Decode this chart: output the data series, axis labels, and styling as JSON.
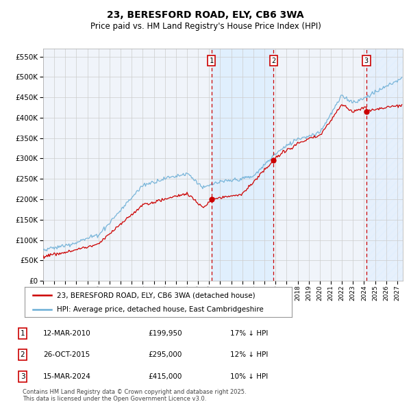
{
  "title": "23, BERESFORD ROAD, ELY, CB6 3WA",
  "subtitle": "Price paid vs. HM Land Registry's House Price Index (HPI)",
  "ylim": [
    0,
    570000
  ],
  "yticks": [
    0,
    50000,
    100000,
    150000,
    200000,
    250000,
    300000,
    350000,
    400000,
    450000,
    500000,
    550000
  ],
  "xlim_start": 1995.0,
  "xlim_end": 2027.5,
  "sale_dates": [
    2010.2,
    2015.82,
    2024.21
  ],
  "sale_prices": [
    199950,
    295000,
    415000
  ],
  "sale_labels": [
    "1",
    "2",
    "3"
  ],
  "legend_entries": [
    "23, BERESFORD ROAD, ELY, CB6 3WA (detached house)",
    "HPI: Average price, detached house, East Cambridgeshire"
  ],
  "table_rows": [
    [
      "1",
      "12-MAR-2010",
      "£199,950",
      "17% ↓ HPI"
    ],
    [
      "2",
      "26-OCT-2015",
      "£295,000",
      "12% ↓ HPI"
    ],
    [
      "3",
      "15-MAR-2024",
      "£415,000",
      "10% ↓ HPI"
    ]
  ],
  "footnote": "Contains HM Land Registry data © Crown copyright and database right 2025.\nThis data is licensed under the Open Government Licence v3.0.",
  "hpi_color": "#6baed6",
  "price_color": "#cc0000",
  "sale_marker_color": "#cc0000",
  "bg_color": "#ffffff",
  "grid_color": "#cccccc",
  "dashed_line_color": "#cc0000",
  "shade_color": "#ddeeff",
  "hatch_color": "#aaccee",
  "chart_bg": "#f0f4fa"
}
